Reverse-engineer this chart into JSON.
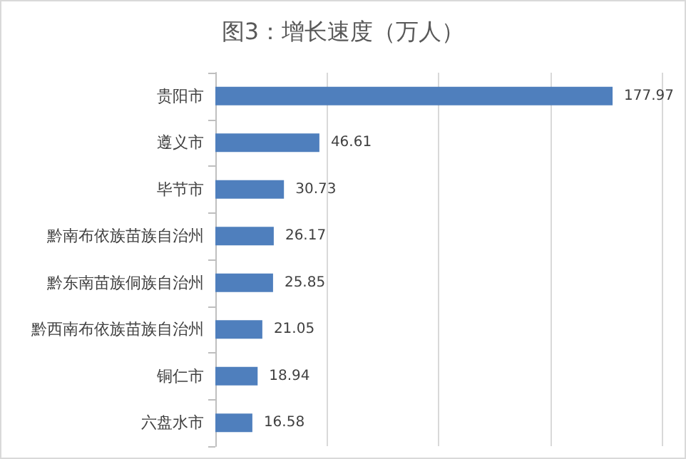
{
  "chart_data": {
    "type": "bar",
    "orientation": "horizontal",
    "title": "图3：增长速度（万人）",
    "categories": [
      "贵阳市",
      "遵义市",
      "毕节市",
      "黔南布依族苗族自治州",
      "黔东南苗族侗族自治州",
      "黔西南布依族苗族自治州",
      "铜仁市",
      "六盘水市"
    ],
    "values": [
      177.97,
      46.61,
      30.73,
      26.17,
      25.85,
      21.05,
      18.94,
      16.58
    ],
    "color": "#4f7fbd",
    "data_labels": true,
    "xlim": [
      0,
      200
    ],
    "xticks": [
      {
        "value": 0,
        "label": null
      },
      {
        "value": 50,
        "label": null
      },
      {
        "value": 100,
        "label": null
      },
      {
        "value": 150,
        "label": null
      },
      {
        "value": 200,
        "label": null
      }
    ],
    "grid": "x",
    "tick_labels": "y"
  }
}
